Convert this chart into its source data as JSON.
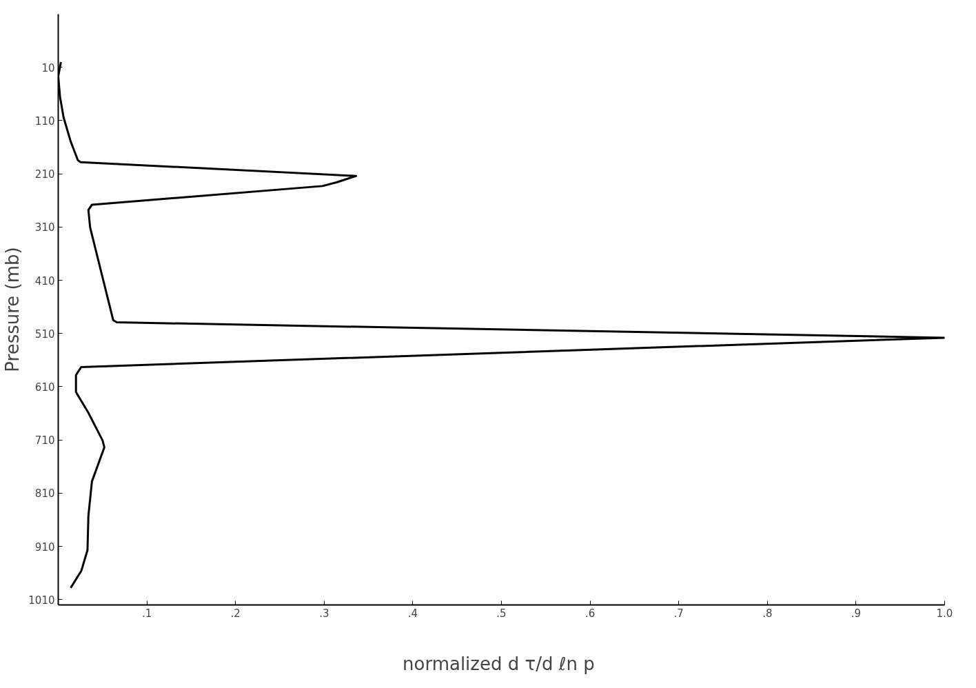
{
  "chart_data": {
    "type": "line",
    "xlabel": "normalized  d τ/d ℓn p",
    "ylabel": "Pressure (mb)",
    "xlim": [
      0,
      1.0
    ],
    "ylim": [
      1020,
      -90
    ],
    "xticks": [
      {
        "value": 0.1,
        "label": ".1"
      },
      {
        "value": 0.2,
        "label": ".2"
      },
      {
        "value": 0.3,
        "label": ".3"
      },
      {
        "value": 0.4,
        "label": ".4"
      },
      {
        "value": 0.5,
        "label": ".5"
      },
      {
        "value": 0.6,
        "label": ".6"
      },
      {
        "value": 0.7,
        "label": ".7"
      },
      {
        "value": 0.8,
        "label": ".8"
      },
      {
        "value": 0.9,
        "label": ".9"
      },
      {
        "value": 1.0,
        "label": "1.0"
      }
    ],
    "yticks": [
      10,
      110,
      210,
      310,
      410,
      510,
      610,
      710,
      810,
      910,
      1010
    ],
    "grid": false,
    "marker": "none",
    "line_style": "solid",
    "series": [
      {
        "color": "#000000",
        "x": [
          0.003,
          0.0,
          0.002,
          0.006,
          0.014,
          0.022,
          0.025,
          0.336,
          0.314,
          0.298,
          0.038,
          0.034,
          0.036,
          0.062,
          0.066,
          1.0,
          0.026,
          0.02,
          0.02,
          0.034,
          0.05,
          0.052,
          0.038,
          0.034,
          0.033,
          0.026,
          0.014
        ],
        "values": [
          0,
          27,
          65,
          104,
          149,
          184,
          188,
          214,
          226,
          233,
          268,
          278,
          311,
          485,
          489,
          518,
          573,
          588,
          620,
          659,
          711,
          724,
          788,
          853,
          917,
          956,
          988
        ]
      }
    ]
  }
}
